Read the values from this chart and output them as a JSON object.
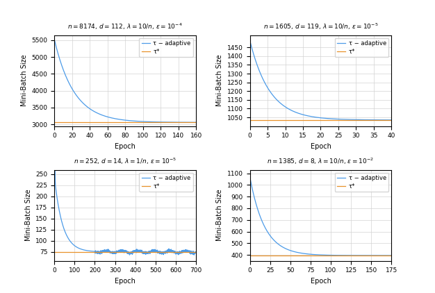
{
  "subplots": [
    {
      "n": 8174,
      "d": 112,
      "lambda_str": "10/n",
      "eps_exp": -4,
      "tau_star": 3060,
      "tau0": 5520,
      "decay_rate": 0.045,
      "xlim": [
        0,
        160
      ],
      "xticks": [
        0,
        20,
        40,
        60,
        80,
        100,
        120,
        140,
        160
      ],
      "ylim": [
        2950,
        5650
      ],
      "yticks": [
        3000,
        3500,
        4000,
        4500,
        5000,
        5500
      ],
      "ylabel": "Mini-Batch Size",
      "xlabel": "Epoch"
    },
    {
      "n": 1605,
      "d": 119,
      "lambda_str": "10/n",
      "eps_exp": -5,
      "tau_star": 1035,
      "tau0": 1490,
      "decay_rate": 0.18,
      "xlim": [
        0,
        40
      ],
      "xticks": [
        0,
        5,
        10,
        15,
        20,
        25,
        30,
        35,
        40
      ],
      "ylim": [
        1000,
        1520
      ],
      "yticks": [
        1050,
        1100,
        1150,
        1200,
        1250,
        1300,
        1350,
        1400,
        1450
      ],
      "ylabel": "Mini-Batch Size",
      "xlabel": "Epoch"
    },
    {
      "n": 252,
      "d": 14,
      "lambda_str": "1/n",
      "eps_exp": -5,
      "tau_star": 75,
      "tau0": 245,
      "decay_rate": 0.025,
      "xlim": [
        0,
        700
      ],
      "xticks": [
        0,
        100,
        200,
        300,
        400,
        500,
        600,
        700
      ],
      "ylim": [
        55,
        260
      ],
      "yticks": [
        75,
        100,
        125,
        150,
        175,
        200,
        225,
        250
      ],
      "ylabel": "Mini-Batch Size",
      "xlabel": "Epoch"
    },
    {
      "n": 1385,
      "d": 8,
      "lambda_str": "10/n",
      "eps_exp": -2,
      "tau_star": 395,
      "tau0": 1070,
      "decay_rate": 0.055,
      "xlim": [
        0,
        175
      ],
      "xticks": [
        0,
        25,
        50,
        75,
        100,
        125,
        150,
        175
      ],
      "ylim": [
        350,
        1130
      ],
      "yticks": [
        400,
        500,
        600,
        700,
        800,
        900,
        1000,
        1100
      ],
      "ylabel": "Mini-Batch Size",
      "xlabel": "Epoch"
    }
  ],
  "colors": {
    "tau_adaptive": "#4C9BE8",
    "tau_star": "#E8922A"
  },
  "legend_labels": {
    "tau_adaptive": "τ − adaptive",
    "tau_star": "τ*"
  }
}
